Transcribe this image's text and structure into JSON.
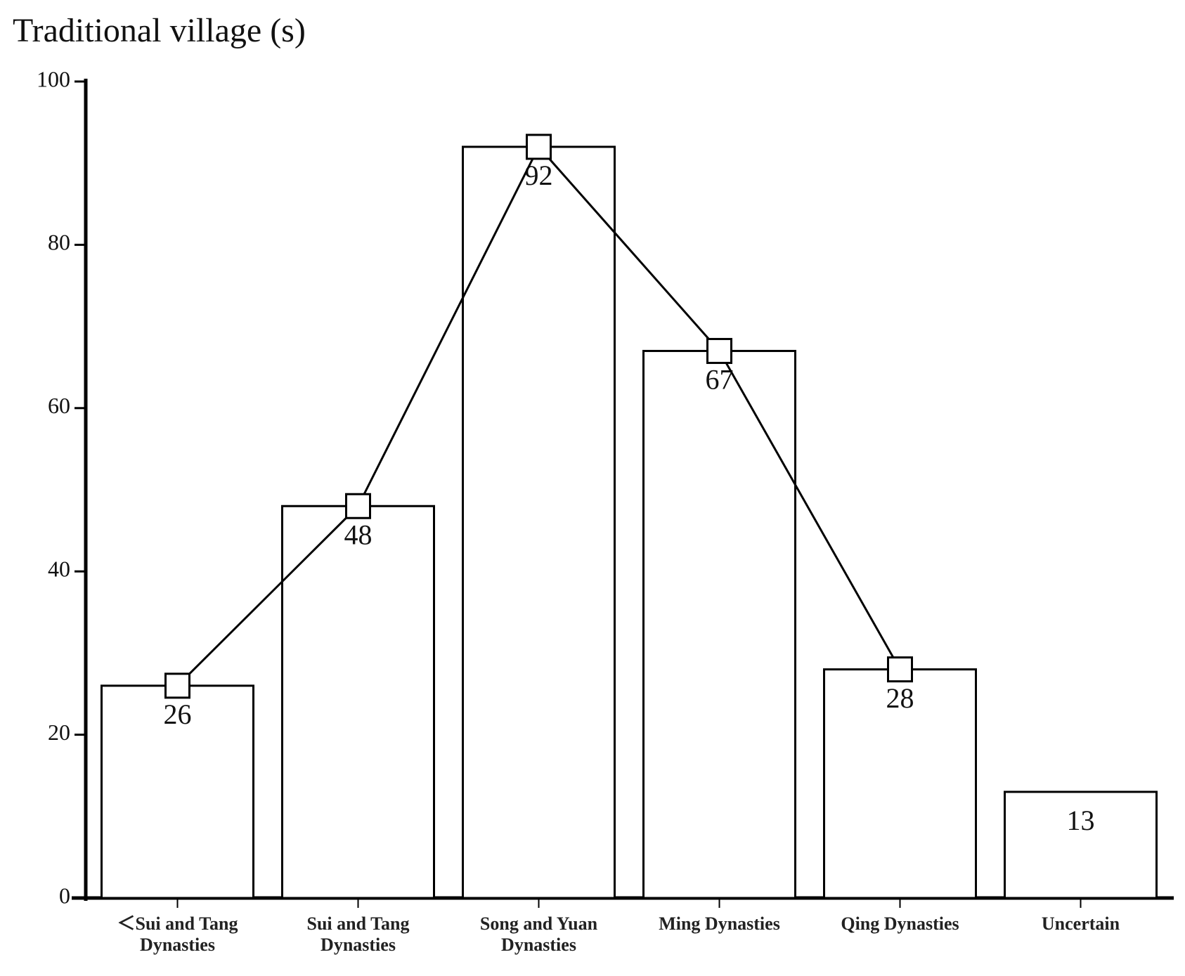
{
  "chart_data": {
    "type": "bar",
    "title": "Traditional village (s)",
    "categories": [
      "＜Sui and Tang Dynasties",
      "Sui and Tang Dynasties",
      "Song and Yuan Dynasties",
      "Ming Dynasties",
      "Qing Dynasties",
      "Uncertain"
    ],
    "series": [
      {
        "type": "bar",
        "color": "#ffffff",
        "values": [
          26,
          48,
          92,
          67,
          28,
          13
        ]
      },
      {
        "type": "line",
        "color": "#000000",
        "values": [
          26,
          48,
          92,
          67,
          28,
          null
        ]
      }
    ],
    "ylim": [
      0,
      100
    ],
    "yticks": [
      0,
      20,
      40,
      60,
      80,
      100
    ],
    "grid": false
  }
}
